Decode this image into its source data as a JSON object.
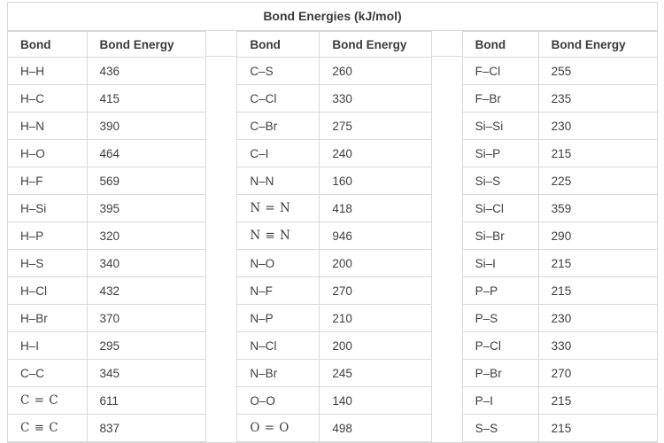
{
  "title": "Bond Energies (kJ/mol)",
  "units": "kJ/mol",
  "columns": {
    "bond": "Bond",
    "energy": "Bond Energy"
  },
  "colors": {
    "border": "#d9d9d9",
    "text": "#3e3e3e",
    "title_text": "#3b3b3b",
    "background": "#ffffff"
  },
  "groups": [
    {
      "rows": [
        {
          "bond": "H–H",
          "energy": "436"
        },
        {
          "bond": "H–C",
          "energy": "415"
        },
        {
          "bond": "H–N",
          "energy": "390"
        },
        {
          "bond": "H–O",
          "energy": "464"
        },
        {
          "bond": "H–F",
          "energy": "569"
        },
        {
          "bond": "H–Si",
          "energy": "395"
        },
        {
          "bond": "H–P",
          "energy": "320"
        },
        {
          "bond": "H–S",
          "energy": "340"
        },
        {
          "bond": "H–Cl",
          "energy": "432"
        },
        {
          "bond": "H–Br",
          "energy": "370"
        },
        {
          "bond": "H–I",
          "energy": "295"
        },
        {
          "bond": "C–C",
          "energy": "345"
        },
        {
          "bond": "C = C",
          "energy": "611",
          "math": true
        },
        {
          "bond": "C ≡ C",
          "energy": "837",
          "math": true
        }
      ]
    },
    {
      "rows": [
        {
          "bond": "C–S",
          "energy": "260"
        },
        {
          "bond": "C–Cl",
          "energy": "330"
        },
        {
          "bond": "C–Br",
          "energy": "275"
        },
        {
          "bond": "C–I",
          "energy": "240"
        },
        {
          "bond": "N–N",
          "energy": "160"
        },
        {
          "bond": "N = N",
          "energy": "418",
          "math": true
        },
        {
          "bond": "N ≡ N",
          "energy": "946",
          "math": true
        },
        {
          "bond": "N–O",
          "energy": "200"
        },
        {
          "bond": "N–F",
          "energy": "270"
        },
        {
          "bond": "N–P",
          "energy": "210"
        },
        {
          "bond": "N–Cl",
          "energy": "200"
        },
        {
          "bond": "N–Br",
          "energy": "245"
        },
        {
          "bond": "O–O",
          "energy": "140"
        },
        {
          "bond": "O = O",
          "energy": "498",
          "math": true
        }
      ]
    },
    {
      "rows": [
        {
          "bond": "F–Cl",
          "energy": "255"
        },
        {
          "bond": "F–Br",
          "energy": "235"
        },
        {
          "bond": "Si–Si",
          "energy": "230"
        },
        {
          "bond": "Si–P",
          "energy": "215"
        },
        {
          "bond": "Si–S",
          "energy": "225"
        },
        {
          "bond": "Si–Cl",
          "energy": "359"
        },
        {
          "bond": "Si–Br",
          "energy": "290"
        },
        {
          "bond": "Si–I",
          "energy": "215"
        },
        {
          "bond": "P–P",
          "energy": "215"
        },
        {
          "bond": "P–S",
          "energy": "230"
        },
        {
          "bond": "P–Cl",
          "energy": "330"
        },
        {
          "bond": "P–Br",
          "energy": "270"
        },
        {
          "bond": "P–I",
          "energy": "215"
        },
        {
          "bond": "S–S",
          "energy": "215"
        }
      ]
    }
  ]
}
